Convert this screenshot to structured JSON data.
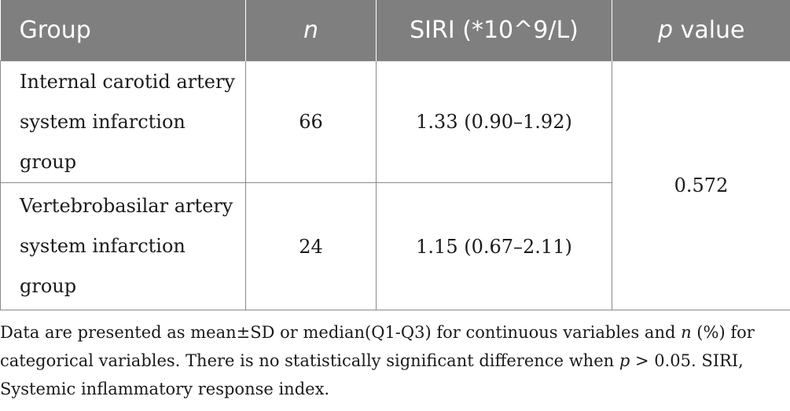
{
  "table": {
    "headers": {
      "group": "Group",
      "n": "n",
      "siri": "SIRI (*10^9/L)",
      "p_italic": "p",
      "p_rest": " value"
    },
    "rows": [
      {
        "group": "Internal carotid artery system infarction group",
        "n": "66",
        "siri": "1.33 (0.90–1.92)"
      },
      {
        "group": "Vertebrobasilar artery system infarction group",
        "n": "24",
        "siri": "1.15 (0.67–2.11)"
      }
    ],
    "p_value": "0.572"
  },
  "footnote": {
    "part1": "Data are presented as mean±SD or median(Q1-Q3) for continuous variables and ",
    "n_italic": "n",
    "part2": " (%) for categorical variables. There is no statistically significant difference when ",
    "p_italic": "p",
    "part3": " > 0.05. SIRI, Systemic inflammatory response index."
  }
}
